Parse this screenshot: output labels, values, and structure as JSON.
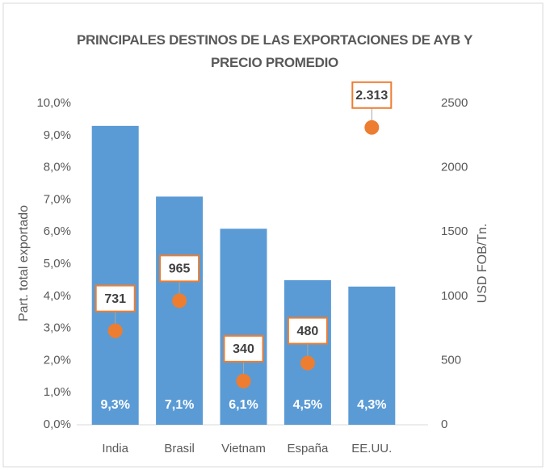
{
  "chart_data": {
    "type": "bar",
    "title": "PRINCIPALES DESTINOS DE LAS EXPORTACIONES DE AYB Y PRECIO PROMEDIO",
    "ylabel": "Part. total exportado",
    "y2label": "USD FOB/Tn.",
    "categories": [
      "India",
      "Brasil",
      "Vietnam",
      "España",
      "EE.UU."
    ],
    "series": [
      {
        "type": "bar",
        "color": "#5b9bd5",
        "values": [
          9.3,
          7.1,
          6.1,
          4.5,
          4.3
        ],
        "value_labels": [
          "9,3%",
          "7,1%",
          "6,1%",
          "4,5%",
          "4,3%"
        ]
      },
      {
        "type": "scatter",
        "axis": "y2",
        "color": "#ed7d31",
        "values": [
          731,
          965,
          340,
          480,
          2313
        ],
        "value_labels": [
          "731",
          "965",
          "340",
          "480",
          "2.313"
        ]
      }
    ],
    "ylim": [
      0,
      10
    ],
    "yticks": [
      {
        "value": 0,
        "label": "0,0%"
      },
      {
        "value": 1,
        "label": "1,0%"
      },
      {
        "value": 2,
        "label": "2,0%"
      },
      {
        "value": 3,
        "label": "3,0%"
      },
      {
        "value": 4,
        "label": "4,0%"
      },
      {
        "value": 5,
        "label": "5,0%"
      },
      {
        "value": 6,
        "label": "6,0%"
      },
      {
        "value": 7,
        "label": "7,0%"
      },
      {
        "value": 8,
        "label": "8,0%"
      },
      {
        "value": 9,
        "label": "9,0%"
      },
      {
        "value": 10,
        "label": "10,0%"
      }
    ],
    "y2lim": [
      0,
      2500
    ],
    "y2ticks": [
      0,
      500,
      1000,
      1500,
      2000,
      2500
    ],
    "grid": false
  }
}
